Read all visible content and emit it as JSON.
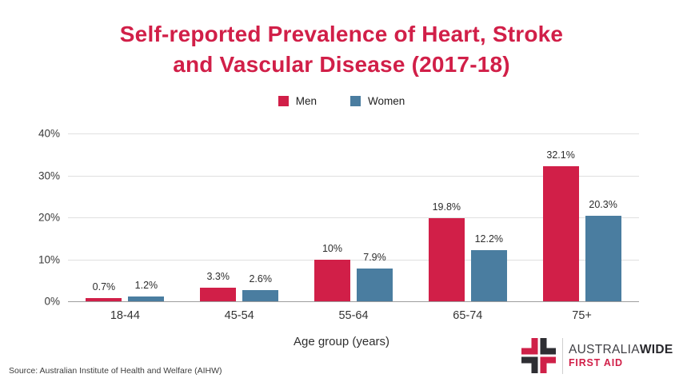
{
  "title": {
    "text": "Self-reported Prevalence of Heart, Stroke and Vascular Disease (2017-18)",
    "display": "Self-reported Prevalence of Heart, Stroke\nand Vascular Disease (2017-18)",
    "color": "#d11f48"
  },
  "chart_data": {
    "type": "bar",
    "title": "Self-reported Prevalence of Heart, Stroke and Vascular Disease (2017-18)",
    "categories": [
      "18-44",
      "45-54",
      "55-64",
      "65-74",
      "75+"
    ],
    "series": [
      {
        "name": "Men",
        "color": "#d11f48",
        "values": [
          0.7,
          3.3,
          10,
          19.8,
          32.1
        ],
        "labels": [
          "0.7%",
          "3.3%",
          "10%",
          "19.8%",
          "32.1%"
        ]
      },
      {
        "name": "Women",
        "color": "#4a7da0",
        "values": [
          1.2,
          2.6,
          7.9,
          12.2,
          20.3
        ],
        "labels": [
          "1.2%",
          "2.6%",
          "7.9%",
          "12.2%",
          "20.3%"
        ]
      }
    ],
    "xlabel": "Age group (years)",
    "ylabel": "",
    "ylim": [
      0,
      40
    ],
    "ytick_labels": [
      "0%",
      "10%",
      "20%",
      "30%",
      "40%"
    ],
    "grid": true,
    "legend_position": "top"
  },
  "footer": {
    "source": "Source: Australian Institute of Health and Welfare (AIHW)"
  },
  "logo": {
    "name_regular": "AUSTRALIA",
    "name_bold": "WIDE",
    "subtitle": "FIRST AID",
    "red": "#cf2048",
    "charcoal": "#2e2e33"
  }
}
